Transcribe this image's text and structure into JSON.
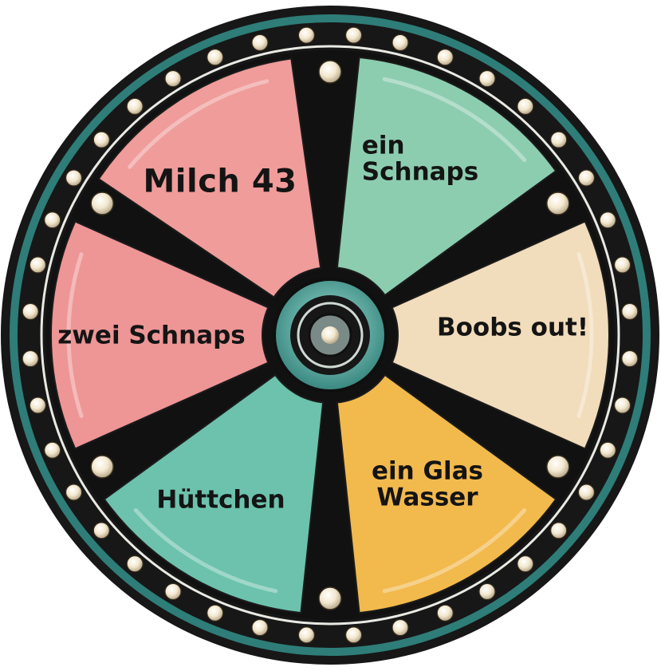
{
  "wheel": {
    "segments": [
      {
        "id": "milch-43",
        "lines": [
          "Milch 43"
        ],
        "color": "#ef9c9a"
      },
      {
        "id": "ein-schnaps",
        "lines": [
          "ein",
          "Schnaps"
        ],
        "color": "#8ccdb0"
      },
      {
        "id": "boobs-out",
        "lines": [
          "Boobs out!"
        ],
        "color": "#f1dcbb"
      },
      {
        "id": "ein-glas-wasser",
        "lines": [
          "ein Glas",
          "Wasser"
        ],
        "color": "#f2b94d"
      },
      {
        "id": "huettchen",
        "lines": [
          "Hüttchen"
        ],
        "color": "#6cc2ad"
      },
      {
        "id": "zwei-schnaps",
        "lines": [
          "zwei Schnaps"
        ],
        "color": "#ee9596"
      }
    ],
    "colors": {
      "rim_teal": "#2e7d78",
      "rim_dark": "#171717",
      "bulb": "#f3e8cf",
      "hub_teal": "#3a9389",
      "spoke": "#111111"
    }
  }
}
